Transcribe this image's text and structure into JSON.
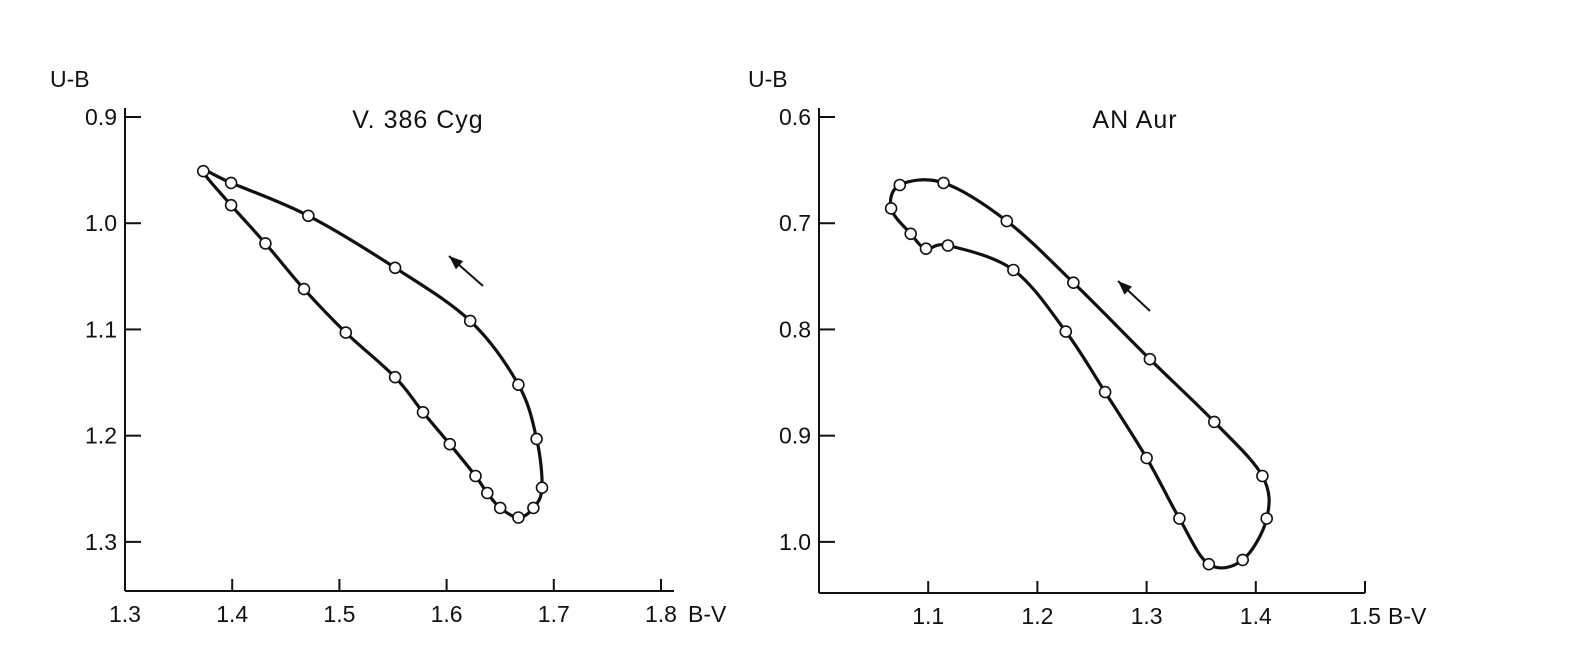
{
  "chart_data": [
    {
      "type": "line",
      "title": "V. 386 Cyg",
      "xlabel": "B-V",
      "ylabel": "U-B",
      "xlim": [
        1.3,
        1.8
      ],
      "ylim": [
        0.9,
        1.35
      ],
      "y_inverted": true,
      "x_ticks": [
        1.3,
        1.4,
        1.5,
        1.6,
        1.7,
        1.8
      ],
      "x_tick_labels": [
        "1.3",
        "1.4",
        "1.5",
        "1.6",
        "1.7",
        "1.8"
      ],
      "y_ticks": [
        0.9,
        1.0,
        1.1,
        1.2,
        1.3
      ],
      "y_tick_labels": [
        "0.9",
        "1.0",
        "1.1",
        "1.2",
        "1.3"
      ],
      "grid": false,
      "closed_loop": true,
      "markers": "open-circle",
      "annotation": "direction arrow pointing up-left",
      "points": [
        {
          "x": 1.373,
          "y": 0.951
        },
        {
          "x": 1.399,
          "y": 0.962
        },
        {
          "x": 1.471,
          "y": 0.993
        },
        {
          "x": 1.552,
          "y": 1.042
        },
        {
          "x": 1.622,
          "y": 1.092
        },
        {
          "x": 1.667,
          "y": 1.152
        },
        {
          "x": 1.684,
          "y": 1.203
        },
        {
          "x": 1.689,
          "y": 1.249
        },
        {
          "x": 1.681,
          "y": 1.268
        },
        {
          "x": 1.667,
          "y": 1.277
        },
        {
          "x": 1.65,
          "y": 1.268
        },
        {
          "x": 1.638,
          "y": 1.254
        },
        {
          "x": 1.627,
          "y": 1.238
        },
        {
          "x": 1.603,
          "y": 1.208
        },
        {
          "x": 1.578,
          "y": 1.178
        },
        {
          "x": 1.552,
          "y": 1.145
        },
        {
          "x": 1.506,
          "y": 1.103
        },
        {
          "x": 1.467,
          "y": 1.062
        },
        {
          "x": 1.431,
          "y": 1.019
        },
        {
          "x": 1.399,
          "y": 0.983
        }
      ]
    },
    {
      "type": "line",
      "title": "AN Aur",
      "xlabel": "B-V",
      "ylabel": "U-B",
      "xlim": [
        1.0,
        1.5
      ],
      "ylim": [
        0.6,
        1.05
      ],
      "y_inverted": true,
      "x_ticks": [
        1.1,
        1.2,
        1.3,
        1.4,
        1.5
      ],
      "x_tick_labels": [
        "1.1",
        "1.2",
        "1.3",
        "1.4",
        "1.5"
      ],
      "y_ticks": [
        0.6,
        0.7,
        0.8,
        0.9,
        1.0
      ],
      "y_tick_labels": [
        "0.6",
        "0.7",
        "0.8",
        "0.9",
        "1.0"
      ],
      "grid": false,
      "closed_loop": true,
      "markers": "open-circle",
      "annotation": "direction arrow pointing up-left",
      "points": [
        {
          "x": 1.114,
          "y": 0.662
        },
        {
          "x": 1.172,
          "y": 0.698
        },
        {
          "x": 1.233,
          "y": 0.756
        },
        {
          "x": 1.303,
          "y": 0.828
        },
        {
          "x": 1.362,
          "y": 0.887
        },
        {
          "x": 1.406,
          "y": 0.938
        },
        {
          "x": 1.41,
          "y": 0.978
        },
        {
          "x": 1.388,
          "y": 1.017
        },
        {
          "x": 1.357,
          "y": 1.021
        },
        {
          "x": 1.33,
          "y": 0.978
        },
        {
          "x": 1.3,
          "y": 0.921
        },
        {
          "x": 1.262,
          "y": 0.859
        },
        {
          "x": 1.226,
          "y": 0.802
        },
        {
          "x": 1.178,
          "y": 0.744
        },
        {
          "x": 1.118,
          "y": 0.721
        },
        {
          "x": 1.098,
          "y": 0.724
        },
        {
          "x": 1.084,
          "y": 0.71
        },
        {
          "x": 1.066,
          "y": 0.686
        },
        {
          "x": 1.074,
          "y": 0.664
        }
      ]
    }
  ]
}
